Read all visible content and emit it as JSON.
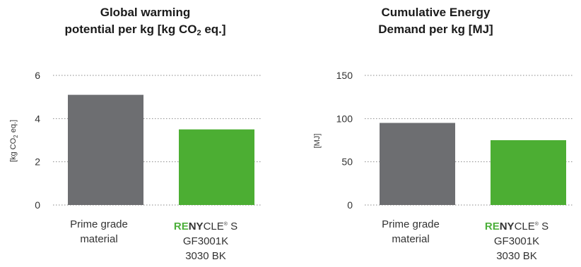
{
  "colors": {
    "prime": "#6d6e71",
    "renycle": "#4cae33",
    "grid": "#8a8a8a",
    "brand_green": "#4caf3a"
  },
  "chart_data": [
    {
      "type": "bar",
      "title_line1": "Global warming",
      "title_line2_pre": "potential per kg [kg CO",
      "title_line2_sub": "2",
      "title_line2_post": " eq.]",
      "ylabel_pre": "[kg CO",
      "ylabel_sub": "2",
      "ylabel_post": " eq.]",
      "categories": [
        "Prime grade material",
        "RENYCLE® S GF3001K 3030 BK"
      ],
      "values": [
        5.1,
        3.5
      ],
      "ylim": [
        0,
        6
      ],
      "yticks": [
        0,
        2,
        4,
        6
      ],
      "grid": "dotted"
    },
    {
      "type": "bar",
      "title_line1": "Cumulative Energy",
      "title_line2_pre": "Demand per kg [MJ]",
      "ylabel_pre": "[MJ]",
      "categories": [
        "Prime grade material",
        "RENYCLE® S GF3001K 3030 BK"
      ],
      "values": [
        95,
        75
      ],
      "ylim": [
        0,
        150
      ],
      "yticks": [
        0,
        50,
        100,
        150
      ],
      "grid": "dotted"
    }
  ],
  "labels": {
    "prime_line1": "Prime grade",
    "prime_line2": "material",
    "renycle_re": "RE",
    "renycle_ny": "NY",
    "renycle_cle": "CLE",
    "renycle_reg": "®",
    "renycle_s": " S",
    "renycle_line2": "GF3001K",
    "renycle_line3": "3030 BK"
  }
}
